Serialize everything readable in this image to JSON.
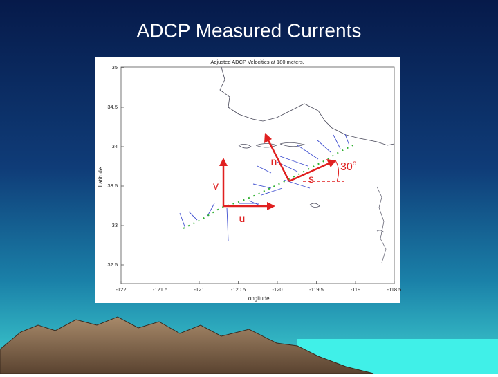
{
  "slide": {
    "title": "ADCP Measured Currents"
  },
  "figure": {
    "title": "Adjusted ADCP Velocities at 180 meters.",
    "x_label": "Longitude",
    "y_label": "Latitude",
    "x_ticks": [
      "-122",
      "-121.5",
      "-121",
      "-120.5",
      "-120",
      "-119.5",
      "-119",
      "-118.5"
    ],
    "y_ticks": [
      "35",
      "34.5",
      "34",
      "33.5",
      "33",
      "32.5"
    ]
  },
  "annotations": {
    "n": "n",
    "s": "s",
    "v": "v",
    "u": "u",
    "angle": "30",
    "angle_unit": "o"
  }
}
